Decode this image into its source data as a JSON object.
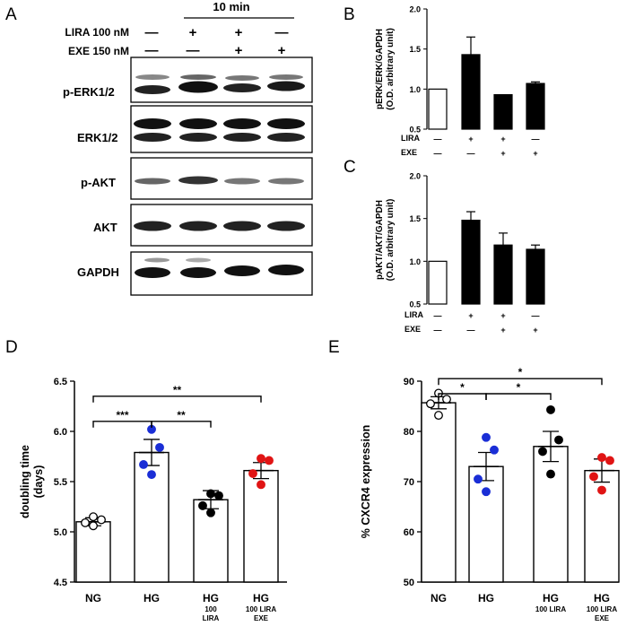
{
  "panel_a": {
    "panel_label": "A",
    "time_label": "10 min",
    "treatments": [
      {
        "label": "LIRA 100 nM",
        "signs": [
          "—",
          "+",
          "+",
          "—"
        ]
      },
      {
        "label": "EXE 150 nM",
        "signs": [
          "—",
          "—",
          "+",
          "+"
        ]
      }
    ],
    "blots": [
      "p-ERK1/2",
      "ERK1/2",
      "p-AKT",
      "AKT",
      "GAPDH"
    ]
  },
  "chart_data": [
    {
      "panel": "B",
      "type": "bar",
      "ylabel": "pERK/ERK/GAPDH (O.D. arbitrary unit)",
      "ylabel_line1": "pERK/ERK/GAPDH",
      "ylabel_line2": "(O.D. arbitrary unit)",
      "ylim": [
        0.5,
        2.0
      ],
      "yticks": [
        "0.5",
        "1.0",
        "1.5",
        "2.0"
      ],
      "values": [
        1.0,
        1.43,
        0.93,
        1.07
      ],
      "errors": [
        0,
        0.22,
        0,
        0.02
      ],
      "fills": [
        "#ffffff",
        "#000000",
        "#000000",
        "#000000"
      ],
      "row_labels": [
        "LIRA",
        "EXE"
      ],
      "row_signs": [
        [
          "—",
          "+",
          "+",
          "—"
        ],
        [
          "—",
          "—",
          "+",
          "+"
        ]
      ]
    },
    {
      "panel": "C",
      "type": "bar",
      "ylabel": "pAKT/AKT/GAPDH (O.D. arbitrary unit)",
      "ylabel_line1": "pAKT/AKT/GAPDH",
      "ylabel_line2": "(O.D. arbitrary unit)",
      "ylim": [
        0.5,
        2.0
      ],
      "yticks": [
        "0.5",
        "1.0",
        "1.5",
        "2.0"
      ],
      "values": [
        1.0,
        1.48,
        1.19,
        1.14
      ],
      "errors": [
        0,
        0.1,
        0.14,
        0.05
      ],
      "fills": [
        "#ffffff",
        "#000000",
        "#000000",
        "#000000"
      ],
      "row_labels": [
        "LIRA",
        "EXE"
      ],
      "row_signs": [
        [
          "—",
          "+",
          "+",
          "—"
        ],
        [
          "—",
          "—",
          "+",
          "+"
        ]
      ]
    },
    {
      "panel": "D",
      "type": "bar",
      "ylabel": "doubling time (days)",
      "ylabel_line1": "doubling time",
      "ylabel_line2": "(days)",
      "ylim": [
        4.5,
        6.5
      ],
      "yticks": [
        "4.5",
        "5.0",
        "5.5",
        "6.0",
        "6.5"
      ],
      "categories": [
        {
          "main": "NG",
          "sub": []
        },
        {
          "main": "HG",
          "sub": []
        },
        {
          "main": "HG",
          "sub": [
            "100",
            "LIRA"
          ]
        },
        {
          "main": "HG",
          "sub": [
            "100 LIRA",
            "EXE"
          ]
        }
      ],
      "values": [
        5.1,
        5.79,
        5.32,
        5.61
      ],
      "errors": [
        0.04,
        0.13,
        0.09,
        0.08
      ],
      "points": [
        [
          5.06,
          5.09,
          5.12,
          5.15
        ],
        [
          5.57,
          5.67,
          5.84,
          6.02
        ],
        [
          5.19,
          5.26,
          5.36,
          5.38
        ],
        [
          5.47,
          5.58,
          5.71,
          5.73
        ]
      ],
      "point_colors": [
        "#ffffff",
        "#1a2ed6",
        "#000000",
        "#e01414"
      ],
      "brackets": [
        {
          "from": 0,
          "to": 1,
          "y": 6.1,
          "label": "***"
        },
        {
          "from": 1,
          "to": 2,
          "y": 6.1,
          "label": "**"
        },
        {
          "from": 0,
          "to": 3,
          "y": 6.35,
          "label": "**"
        }
      ]
    },
    {
      "panel": "E",
      "type": "bar",
      "ylabel": "% CXCR4 expression",
      "ylim": [
        50,
        90
      ],
      "yticks": [
        "50",
        "60",
        "70",
        "80",
        "90"
      ],
      "categories": [
        {
          "main": "NG",
          "sub": []
        },
        {
          "main": "HG",
          "sub": []
        },
        {
          "main": "HG",
          "sub": [
            "100 LIRA"
          ]
        },
        {
          "main": "HG",
          "sub": [
            "100 LIRA",
            "EXE"
          ]
        }
      ],
      "values": [
        85.7,
        73.0,
        77.0,
        72.2
      ],
      "errors": [
        1.2,
        2.8,
        3.0,
        2.3
      ],
      "points": [
        [
          83.2,
          85.5,
          86.4,
          87.6
        ],
        [
          68.0,
          70.5,
          76.3,
          78.8
        ],
        [
          71.5,
          76.0,
          78.3,
          84.3
        ],
        [
          68.3,
          71.0,
          74.2,
          74.8
        ]
      ],
      "point_colors": [
        "#ffffff",
        "#1a2ed6",
        "#000000",
        "#e01414"
      ],
      "brackets": [
        {
          "from": 0,
          "to": 1,
          "y": 87.5,
          "label": "*"
        },
        {
          "from": 1,
          "to": 2,
          "y": 87.5,
          "label": "*"
        },
        {
          "from": 0,
          "to": 3,
          "y": 90.5,
          "label": "*"
        }
      ]
    }
  ]
}
